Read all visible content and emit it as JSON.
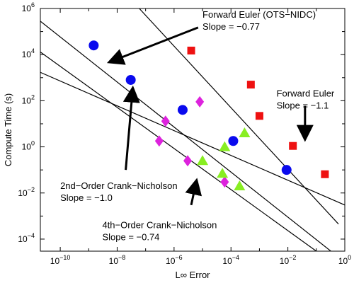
{
  "chart_data": {
    "type": "scatter",
    "title": "",
    "xlabel": "L∞ Error",
    "ylabel": "Compute Time (s)",
    "x_scale": "log",
    "y_scale": "log",
    "xlim": [
      2e-11,
      1
    ],
    "ylim": [
      3e-05,
      1000000.0
    ],
    "grid": false,
    "x_ticks": [
      {
        "value": 1e-10,
        "base": "10",
        "exp": "−10"
      },
      {
        "value": 1e-08,
        "base": "10",
        "exp": "−8"
      },
      {
        "value": 1e-06,
        "base": "10",
        "exp": "−6"
      },
      {
        "value": 0.0001,
        "base": "10",
        "exp": "−4"
      },
      {
        "value": 0.01,
        "base": "10",
        "exp": "−2"
      },
      {
        "value": 1,
        "base": "10",
        "exp": "0"
      }
    ],
    "y_ticks": [
      {
        "value": 0.0001,
        "base": "10",
        "exp": "−4"
      },
      {
        "value": 0.01,
        "base": "10",
        "exp": "−2"
      },
      {
        "value": 1,
        "base": "10",
        "exp": "0"
      },
      {
        "value": 100.0,
        "base": "10",
        "exp": "2"
      },
      {
        "value": 10000.0,
        "base": "10",
        "exp": "4"
      },
      {
        "value": 1000000.0,
        "base": "10",
        "exp": "6"
      }
    ],
    "series": [
      {
        "marker": "square",
        "color": "#ee1111",
        "x": [
          4e-06,
          0.0005,
          0.001,
          0.015,
          0.2
        ],
        "y": [
          15000.0,
          500,
          22,
          1.1,
          0.065
        ]
      },
      {
        "marker": "circle",
        "color": "#0a0aee",
        "x": [
          1.5e-09,
          3e-08,
          2e-06,
          0.00012,
          0.009
        ],
        "y": [
          25000.0,
          800,
          40,
          1.8,
          0.1
        ]
      },
      {
        "marker": "diamond",
        "color": "#dd22dd",
        "x": [
          3e-07,
          5e-07,
          3e-06,
          8e-06,
          6e-05
        ],
        "y": [
          1.8,
          13,
          0.25,
          90,
          0.03
        ]
      },
      {
        "marker": "triangle",
        "color": "#88ee22",
        "x": [
          1e-05,
          5e-05,
          6e-05,
          0.0002,
          0.0003
        ],
        "y": [
          0.25,
          0.07,
          1.0,
          0.02,
          4.0
        ]
      }
    ],
    "fit_lines": [
      {
        "slope_label": "Slope = −0.77",
        "x0": 2e-11,
        "y0": 280000.0,
        "x1": 1,
        "y1": 1e-05
      },
      {
        "slope_label": "Slope = −1.1",
        "x0": 6e-08,
        "y0": 1000000.0,
        "x1": 0.6,
        "y1": 0.00045
      },
      {
        "slope_label": "Slope = −1.0",
        "x0": 2e-11,
        "y0": 13000.0,
        "x1": 0.1,
        "y1": 3e-05
      },
      {
        "slope_label": "Slope = −0.74",
        "x0": 2e-11,
        "y0": 1700.0,
        "x1": 1,
        "y1": 0.003
      }
    ],
    "annotations": [
      {
        "lines": [
          "Forward Euler (OTS−NIDC)",
          "Slope = −0.77"
        ],
        "x": 1e-05,
        "y": 400000.0
      },
      {
        "lines": [
          "Forward Euler",
          "Slope = −1.1"
        ],
        "x": 0.004,
        "y": 150
      },
      {
        "lines": [
          "2nd−Order Crank−Nicholson",
          "Slope = −1.0"
        ],
        "x": 1e-10,
        "y": 0.015
      },
      {
        "lines": [
          "4th−Order Crank−Nicholson",
          "Slope = −0.74"
        ],
        "x": 3e-09,
        "y": 0.0003
      }
    ],
    "arrows": [
      {
        "from": [
          7e-06,
          150000.0
        ],
        "to": [
          6e-09,
          5000.0
        ]
      },
      {
        "from": [
          0.04,
          60
        ],
        "to": [
          0.04,
          2.5
        ]
      },
      {
        "from": [
          2e-08,
          0.1
        ],
        "to": [
          3.5e-08,
          300
        ]
      },
      {
        "from": [
          4e-06,
          0.003
        ],
        "to": [
          6e-06,
          0.03
        ]
      }
    ]
  }
}
